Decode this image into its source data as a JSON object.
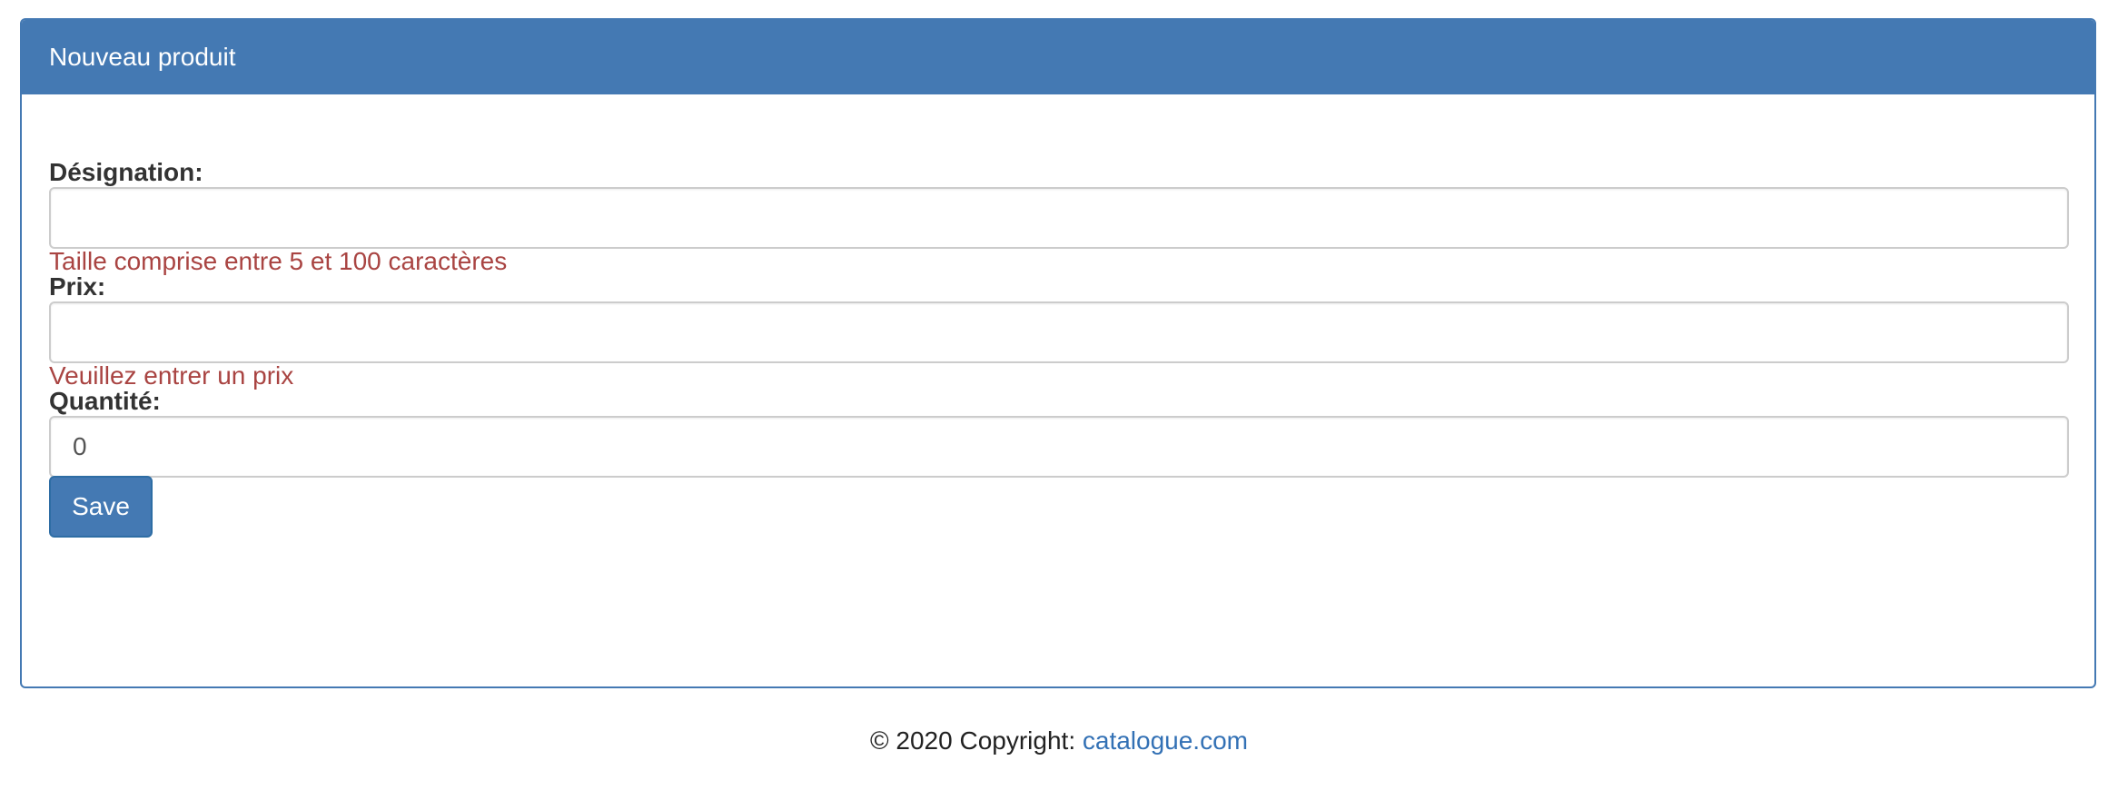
{
  "panel": {
    "title": "Nouveau produit"
  },
  "form": {
    "designation": {
      "label": "Désignation:",
      "value": "",
      "error": "Taille comprise entre 5 et 100 caractères"
    },
    "prix": {
      "label": "Prix:",
      "value": "",
      "error": "Veuillez entrer un prix"
    },
    "quantite": {
      "label": "Quantité:",
      "value": "0"
    },
    "save_label": "Save"
  },
  "footer": {
    "copyright": "© 2020 Copyright:",
    "link_text": "catalogue.com"
  },
  "colors": {
    "primary": "#4479b3",
    "error": "#a94442",
    "link": "#3371b5"
  }
}
